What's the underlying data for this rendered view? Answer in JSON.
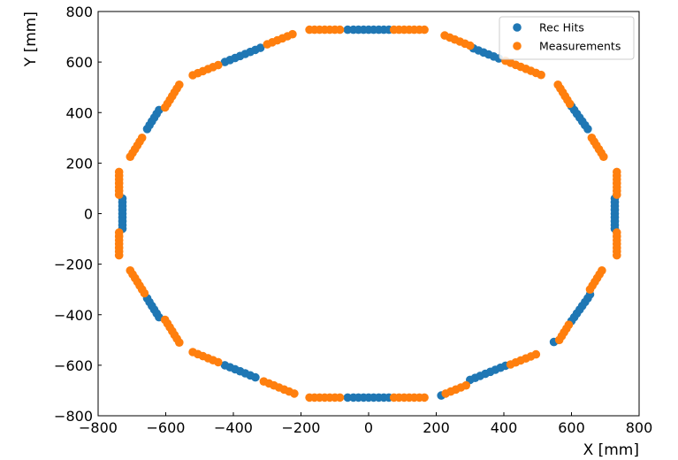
{
  "chart_data": {
    "type": "scatter",
    "title": "",
    "xlabel": "X [mm]",
    "ylabel": "Y [mm]",
    "xlim": [
      -800,
      800
    ],
    "ylim": [
      -800,
      800
    ],
    "xticks": [
      -800,
      -600,
      -400,
      -200,
      0,
      200,
      400,
      600,
      800
    ],
    "yticks": [
      -800,
      -600,
      -400,
      -200,
      0,
      200,
      400,
      600,
      800
    ],
    "xtick_labels": [
      "−800",
      "−600",
      "−400",
      "−200",
      "0",
      "200",
      "400",
      "600",
      "800"
    ],
    "ytick_labels": [
      "−800",
      "−600",
      "−400",
      "−200",
      "0",
      "200",
      "400",
      "600",
      "800"
    ],
    "grid": false,
    "legend_position": "top-right",
    "series": [
      {
        "name": "Rec Hits",
        "color": "#1f77b4",
        "points": [
          [
            -62,
            728
          ],
          [
            -45,
            728
          ],
          [
            -30,
            728
          ],
          [
            -15,
            728
          ],
          [
            0,
            728
          ],
          [
            15,
            728
          ],
          [
            30,
            728
          ],
          [
            45,
            728
          ],
          [
            60,
            728
          ],
          [
            -62,
            -728
          ],
          [
            -45,
            -728
          ],
          [
            -30,
            -728
          ],
          [
            -15,
            -728
          ],
          [
            0,
            -728
          ],
          [
            15,
            -728
          ],
          [
            30,
            -728
          ],
          [
            45,
            -728
          ],
          [
            60,
            -728
          ],
          [
            728,
            60
          ],
          [
            728,
            45
          ],
          [
            728,
            30
          ],
          [
            728,
            15
          ],
          [
            728,
            0
          ],
          [
            728,
            -15
          ],
          [
            728,
            -30
          ],
          [
            728,
            -45
          ],
          [
            728,
            -60
          ],
          [
            -728,
            60
          ],
          [
            -728,
            45
          ],
          [
            -728,
            30
          ],
          [
            -728,
            15
          ],
          [
            -728,
            0
          ],
          [
            -728,
            -15
          ],
          [
            -728,
            -30
          ],
          [
            -728,
            -45
          ],
          [
            -728,
            -60
          ],
          [
            -425,
            600
          ],
          [
            -410,
            608
          ],
          [
            -395,
            616
          ],
          [
            -380,
            624
          ],
          [
            -365,
            632
          ],
          [
            -350,
            640
          ],
          [
            -335,
            648
          ],
          [
            -320,
            656
          ],
          [
            310,
            654
          ],
          [
            325,
            646
          ],
          [
            340,
            638
          ],
          [
            355,
            630
          ],
          [
            370,
            622
          ],
          [
            385,
            614
          ],
          [
            -425,
            -600
          ],
          [
            -410,
            -608
          ],
          [
            -395,
            -616
          ],
          [
            -380,
            -624
          ],
          [
            -365,
            -632
          ],
          [
            -350,
            -640
          ],
          [
            -335,
            -648
          ],
          [
            300,
            -658
          ],
          [
            315,
            -650
          ],
          [
            330,
            -642
          ],
          [
            345,
            -634
          ],
          [
            360,
            -626
          ],
          [
            375,
            -618
          ],
          [
            390,
            -610
          ],
          [
            405,
            -602
          ],
          [
            -655,
            335
          ],
          [
            -648,
            350
          ],
          [
            -641,
            365
          ],
          [
            -634,
            380
          ],
          [
            -627,
            395
          ],
          [
            -620,
            410
          ],
          [
            600,
            425
          ],
          [
            608,
            410
          ],
          [
            616,
            395
          ],
          [
            624,
            380
          ],
          [
            632,
            365
          ],
          [
            640,
            350
          ],
          [
            648,
            335
          ],
          [
            -655,
            -335
          ],
          [
            -648,
            -350
          ],
          [
            -641,
            -365
          ],
          [
            -634,
            -380
          ],
          [
            -627,
            -395
          ],
          [
            -620,
            -410
          ],
          [
            600,
            -425
          ],
          [
            608,
            -410
          ],
          [
            616,
            -395
          ],
          [
            624,
            -380
          ],
          [
            632,
            -365
          ],
          [
            640,
            -350
          ],
          [
            648,
            -335
          ],
          [
            655,
            -320
          ],
          [
            548,
            -508
          ],
          [
            215,
            -720
          ]
        ]
      },
      {
        "name": "Measurements",
        "color": "#ff7f0e",
        "points": [
          [
            -175,
            728
          ],
          [
            -160,
            728
          ],
          [
            -145,
            728
          ],
          [
            -130,
            728
          ],
          [
            -115,
            728
          ],
          [
            -100,
            728
          ],
          [
            -85,
            728
          ],
          [
            75,
            728
          ],
          [
            90,
            728
          ],
          [
            105,
            728
          ],
          [
            120,
            728
          ],
          [
            135,
            728
          ],
          [
            150,
            728
          ],
          [
            165,
            728
          ],
          [
            -175,
            -728
          ],
          [
            -160,
            -728
          ],
          [
            -145,
            -728
          ],
          [
            -130,
            -728
          ],
          [
            -115,
            -728
          ],
          [
            -100,
            -728
          ],
          [
            -85,
            -728
          ],
          [
            75,
            -728
          ],
          [
            90,
            -728
          ],
          [
            105,
            -728
          ],
          [
            120,
            -728
          ],
          [
            135,
            -728
          ],
          [
            150,
            -728
          ],
          [
            165,
            -728
          ],
          [
            -738,
            165
          ],
          [
            -738,
            150
          ],
          [
            -738,
            135
          ],
          [
            -738,
            120
          ],
          [
            -738,
            105
          ],
          [
            -738,
            90
          ],
          [
            -738,
            75
          ],
          [
            -738,
            -75
          ],
          [
            -738,
            -90
          ],
          [
            -738,
            -105
          ],
          [
            -738,
            -120
          ],
          [
            -738,
            -135
          ],
          [
            -738,
            -150
          ],
          [
            -738,
            -165
          ],
          [
            734,
            165
          ],
          [
            734,
            150
          ],
          [
            734,
            135
          ],
          [
            734,
            120
          ],
          [
            734,
            105
          ],
          [
            734,
            90
          ],
          [
            734,
            75
          ],
          [
            734,
            -75
          ],
          [
            734,
            -90
          ],
          [
            734,
            -105
          ],
          [
            734,
            -120
          ],
          [
            734,
            -135
          ],
          [
            734,
            -150
          ],
          [
            734,
            -165
          ],
          [
            -520,
            548
          ],
          [
            -505,
            556
          ],
          [
            -490,
            564
          ],
          [
            -475,
            572
          ],
          [
            -460,
            580
          ],
          [
            -445,
            588
          ],
          [
            -300,
            670
          ],
          [
            -285,
            678
          ],
          [
            -270,
            686
          ],
          [
            -255,
            694
          ],
          [
            -240,
            702
          ],
          [
            -225,
            710
          ],
          [
            225,
            705
          ],
          [
            240,
            697
          ],
          [
            255,
            689
          ],
          [
            270,
            681
          ],
          [
            285,
            673
          ],
          [
            300,
            665
          ],
          [
            405,
            605
          ],
          [
            420,
            597
          ],
          [
            435,
            589
          ],
          [
            450,
            581
          ],
          [
            465,
            573
          ],
          [
            480,
            565
          ],
          [
            495,
            557
          ],
          [
            510,
            549
          ],
          [
            -520,
            -548
          ],
          [
            -505,
            -556
          ],
          [
            -490,
            -564
          ],
          [
            -475,
            -572
          ],
          [
            -460,
            -580
          ],
          [
            -445,
            -588
          ],
          [
            -310,
            -664
          ],
          [
            -295,
            -672
          ],
          [
            -280,
            -680
          ],
          [
            -265,
            -688
          ],
          [
            -250,
            -696
          ],
          [
            -235,
            -704
          ],
          [
            -220,
            -712
          ],
          [
            228,
            -712
          ],
          [
            243,
            -704
          ],
          [
            258,
            -696
          ],
          [
            273,
            -688
          ],
          [
            288,
            -680
          ],
          [
            420,
            -597
          ],
          [
            435,
            -589
          ],
          [
            450,
            -581
          ],
          [
            465,
            -573
          ],
          [
            480,
            -565
          ],
          [
            495,
            -557
          ],
          [
            -560,
            510
          ],
          [
            -567,
            495
          ],
          [
            -574,
            480
          ],
          [
            -581,
            465
          ],
          [
            -588,
            450
          ],
          [
            -595,
            435
          ],
          [
            -602,
            420
          ],
          [
            -670,
            300
          ],
          [
            -677,
            285
          ],
          [
            -684,
            270
          ],
          [
            -691,
            255
          ],
          [
            -698,
            240
          ],
          [
            -705,
            225
          ],
          [
            560,
            510
          ],
          [
            567,
            495
          ],
          [
            574,
            480
          ],
          [
            581,
            465
          ],
          [
            588,
            450
          ],
          [
            595,
            435
          ],
          [
            660,
            300
          ],
          [
            667,
            285
          ],
          [
            674,
            270
          ],
          [
            681,
            255
          ],
          [
            688,
            240
          ],
          [
            695,
            225
          ],
          [
            -705,
            -225
          ],
          [
            -698,
            -240
          ],
          [
            -691,
            -255
          ],
          [
            -684,
            -270
          ],
          [
            -677,
            -285
          ],
          [
            -670,
            -300
          ],
          [
            -663,
            -315
          ],
          [
            -602,
            -420
          ],
          [
            -595,
            -435
          ],
          [
            -588,
            -450
          ],
          [
            -581,
            -465
          ],
          [
            -574,
            -480
          ],
          [
            -567,
            -495
          ],
          [
            -560,
            -510
          ],
          [
            690,
            -225
          ],
          [
            683,
            -240
          ],
          [
            676,
            -255
          ],
          [
            669,
            -270
          ],
          [
            662,
            -285
          ],
          [
            655,
            -300
          ],
          [
            592,
            -440
          ],
          [
            585,
            -455
          ],
          [
            578,
            -470
          ],
          [
            571,
            -485
          ],
          [
            564,
            -500
          ]
        ]
      }
    ]
  }
}
